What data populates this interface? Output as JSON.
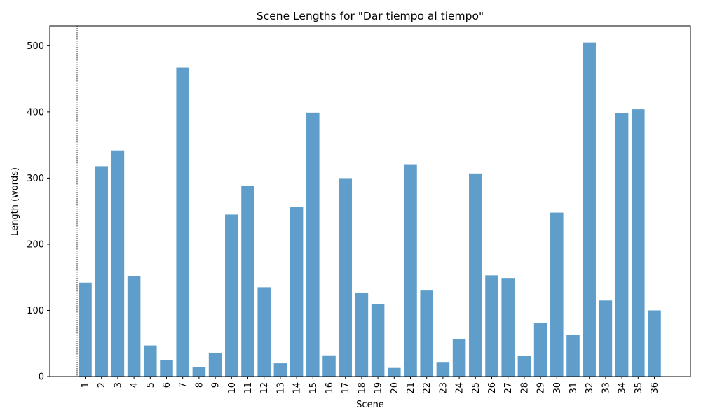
{
  "chart_data": {
    "type": "bar",
    "title": "Scene Lengths for \"Dar tiempo al tiempo\"",
    "xlabel": "Scene",
    "ylabel": "Length (words)",
    "categories": [
      "1",
      "2",
      "3",
      "4",
      "5",
      "6",
      "7",
      "8",
      "9",
      "10",
      "11",
      "12",
      "13",
      "14",
      "15",
      "16",
      "17",
      "18",
      "19",
      "20",
      "21",
      "22",
      "23",
      "24",
      "25",
      "26",
      "27",
      "28",
      "29",
      "30",
      "31",
      "32",
      "33",
      "34",
      "35",
      "36"
    ],
    "values": [
      142,
      318,
      342,
      152,
      47,
      25,
      467,
      14,
      36,
      245,
      288,
      135,
      20,
      256,
      399,
      32,
      300,
      127,
      109,
      13,
      321,
      130,
      22,
      57,
      307,
      153,
      149,
      31,
      81,
      248,
      63,
      505,
      115,
      398,
      404,
      100
    ],
    "ylim": [
      0,
      530
    ],
    "yticks": [
      0,
      100,
      200,
      300,
      400,
      500
    ],
    "bar_color": "#5f9ecb",
    "grid": false,
    "annotations": [
      "dotted vertical line at left of scene 1"
    ]
  }
}
